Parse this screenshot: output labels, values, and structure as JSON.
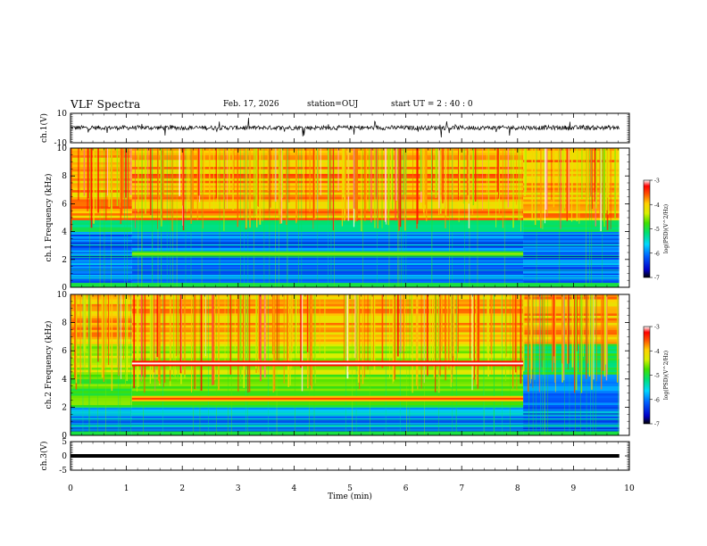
{
  "header": {
    "title": "VLF Spectra",
    "date": "Feb. 17, 2026",
    "station": "station=OUJ",
    "start": "start  UT =   2 : 40 : 0"
  },
  "chart_data": {
    "type": "heatmap",
    "title": "VLF Spectra",
    "x": {
      "label": "Time (min)",
      "range": [
        0,
        10
      ],
      "ticks": [
        "0",
        "1",
        "2",
        "3",
        "4",
        "5",
        "6",
        "7",
        "8",
        "9",
        "10"
      ],
      "data_end": 9.82
    },
    "panels": [
      {
        "name": "ch.1(V)",
        "kind": "waveform",
        "ylabel": "ch.1(V)",
        "yrange": [
          -10,
          10
        ],
        "yticks": [
          "10",
          "-10"
        ],
        "baseline": 0.2,
        "amplitude": 3
      },
      {
        "name": "ch.1",
        "kind": "spectrogram",
        "ylabel": "ch.1 Frequency (kHz)",
        "yrange": [
          0,
          10
        ],
        "yticks": [
          "0",
          "2",
          "4",
          "6",
          "8",
          "10"
        ],
        "colorbar": {
          "label": "log(PSD)(V^2/Hz)",
          "range": [
            -7,
            -3
          ],
          "ticks": [
            "-3",
            "-4",
            "-5",
            "-6",
            "-7"
          ]
        },
        "lines": [
          {
            "freq_khz": 2.4,
            "t_start": 1.1,
            "t_end": 8.1,
            "level": -4.9
          }
        ]
      },
      {
        "name": "ch.2",
        "kind": "spectrogram",
        "ylabel": "ch.2 Frequency (kHz)",
        "yrange": [
          0,
          10
        ],
        "yticks": [
          "0",
          "2",
          "4",
          "6",
          "8",
          "10"
        ],
        "colorbar": {
          "label": "log(PSD)(V^2/Hz)",
          "range": [
            -7,
            -3
          ],
          "ticks": [
            "-3",
            "-4",
            "-5",
            "-6",
            "-7"
          ]
        },
        "lines": [
          {
            "freq_khz": 5.1,
            "t_start": 1.1,
            "t_end": 8.1,
            "level": -3.3
          },
          {
            "freq_khz": 2.6,
            "t_start": 1.1,
            "t_end": 8.1,
            "level": -3.9
          }
        ]
      },
      {
        "name": "ch.3(V)",
        "kind": "waveform",
        "ylabel": "ch.3(V)",
        "yrange": [
          -5,
          5
        ],
        "yticks": [
          "5",
          "0",
          "-5"
        ],
        "baseline": 0,
        "amplitude": 0
      }
    ]
  }
}
